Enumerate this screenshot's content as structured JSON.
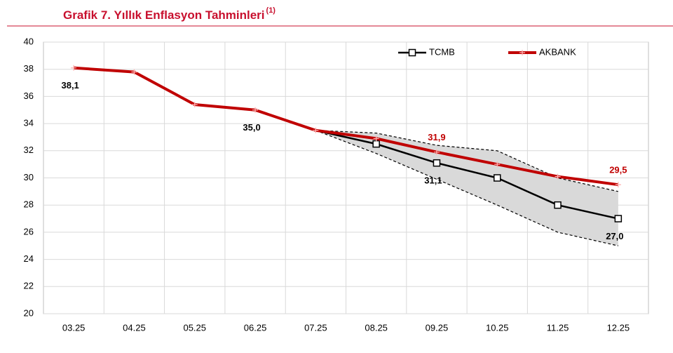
{
  "chart_data": {
    "type": "line",
    "title": "Grafik 7. Yıllık Enflasyon Tahminleri",
    "title_note": "(1)",
    "categories": [
      "03.25",
      "04.25",
      "05.25",
      "06.25",
      "07.25",
      "08.25",
      "09.25",
      "10.25",
      "11.25",
      "12.25"
    ],
    "series": [
      {
        "name": "TCMB",
        "color": "#000000",
        "values": [
          38.1,
          37.8,
          35.4,
          35.0,
          33.5,
          32.5,
          31.1,
          30.0,
          28.0,
          27.0
        ],
        "value_labels": [
          "38,1",
          null,
          null,
          "35,0",
          null,
          null,
          "31,1",
          null,
          null,
          "27,0"
        ]
      },
      {
        "name": "AKBANK",
        "color": "#c00000",
        "values": [
          38.1,
          37.8,
          35.4,
          35.0,
          33.5,
          32.9,
          31.9,
          31.0,
          30.1,
          29.5
        ],
        "value_labels": [
          null,
          null,
          null,
          null,
          null,
          null,
          "31,9",
          null,
          null,
          "29,5"
        ]
      }
    ],
    "band": {
      "upper": [
        null,
        null,
        null,
        null,
        33.5,
        33.3,
        32.4,
        32.0,
        30.0,
        29.0
      ],
      "lower": [
        null,
        null,
        null,
        null,
        33.5,
        31.8,
        29.9,
        28.0,
        26.0,
        25.0
      ],
      "color": "#d9d9d9"
    },
    "ylim": [
      20,
      40
    ],
    "yticks": [
      20,
      22,
      24,
      26,
      28,
      30,
      32,
      34,
      36,
      38,
      40
    ],
    "grid": true,
    "legend": "top-right"
  }
}
